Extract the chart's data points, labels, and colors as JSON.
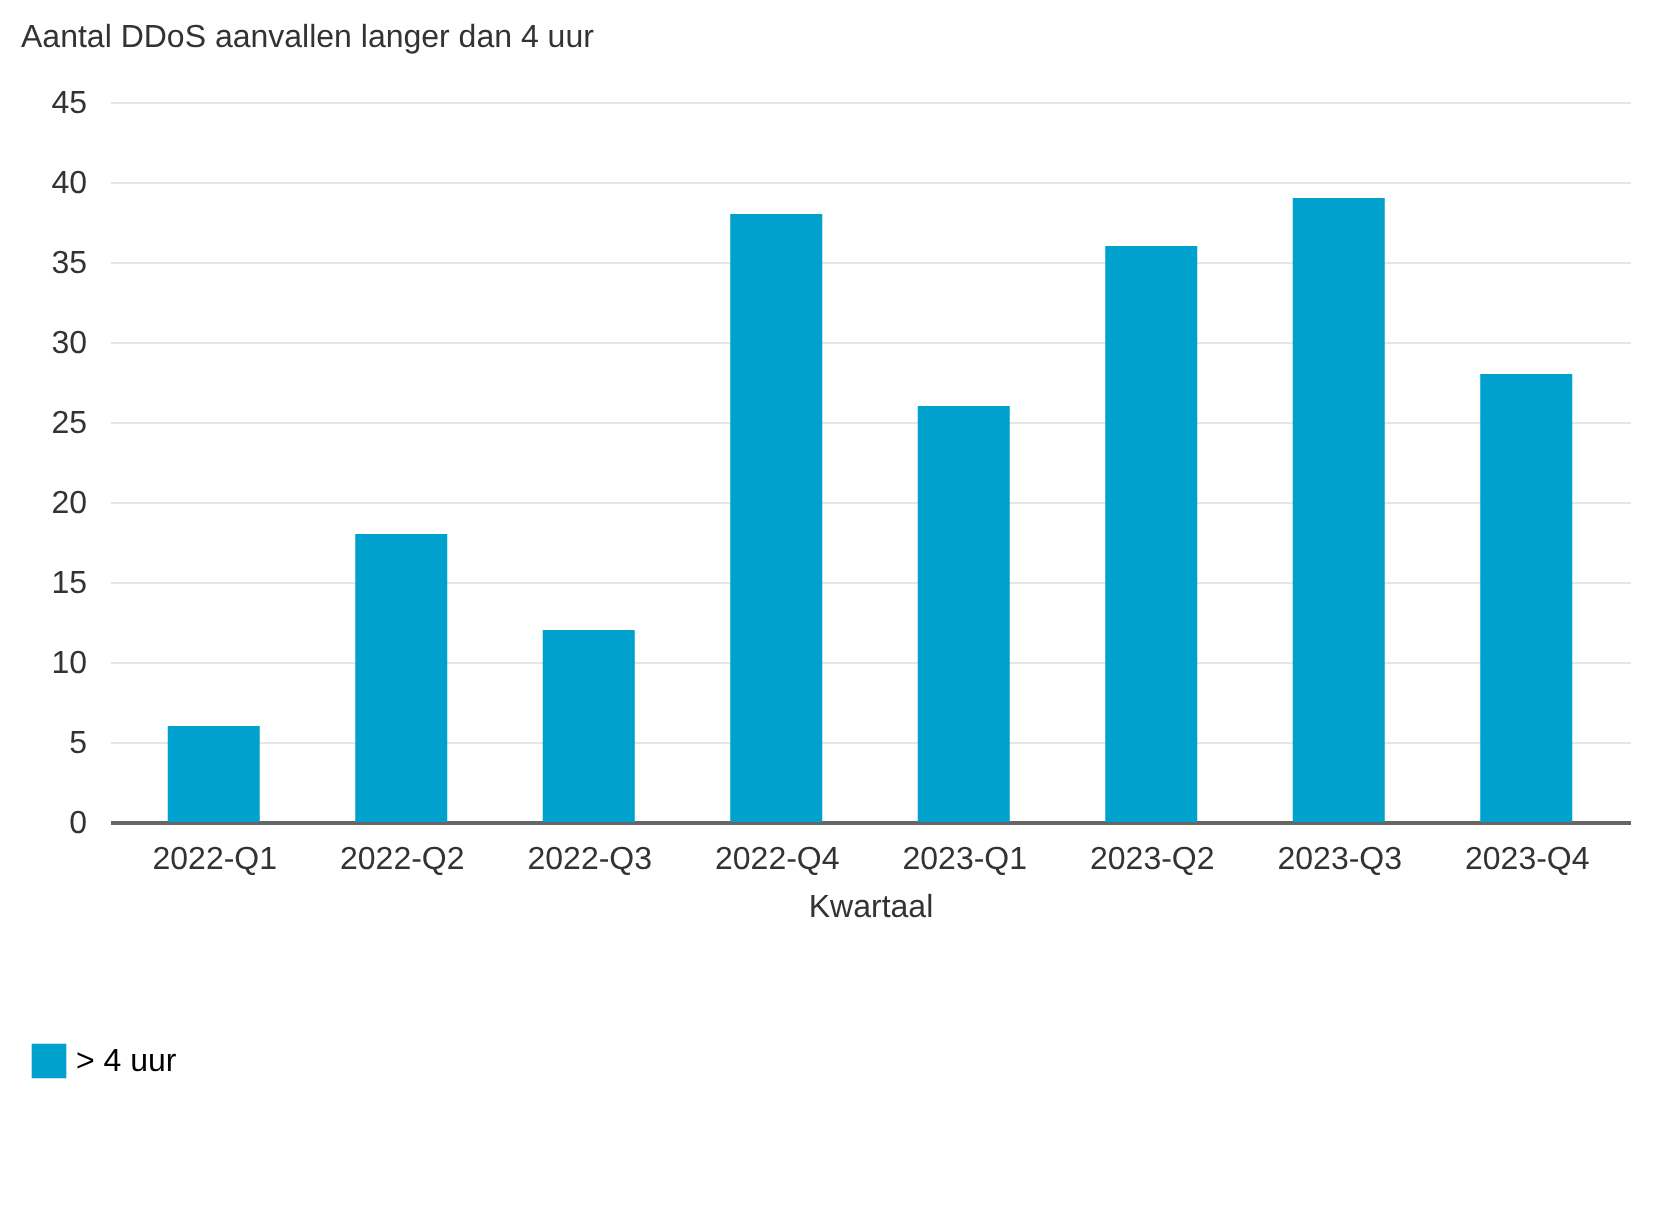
{
  "chart_data": {
    "type": "bar",
    "ylabel": "Aantal DDoS aanvallen langer dan 4 uur",
    "xlabel": "Kwartaal",
    "categories": [
      "2022-Q1",
      "2022-Q2",
      "2022-Q3",
      "2022-Q4",
      "2023-Q1",
      "2023-Q2",
      "2023-Q3",
      "2023-Q4"
    ],
    "series": [
      {
        "name": "> 4 uur",
        "color": "#00a1cd",
        "values": [
          6,
          18,
          12,
          38,
          26,
          36,
          39,
          28
        ]
      }
    ],
    "ylim": [
      0,
      45
    ],
    "yticks": [
      0,
      5,
      10,
      15,
      20,
      25,
      30,
      35,
      40,
      45
    ],
    "grid": "y",
    "legend": "bottom left"
  }
}
